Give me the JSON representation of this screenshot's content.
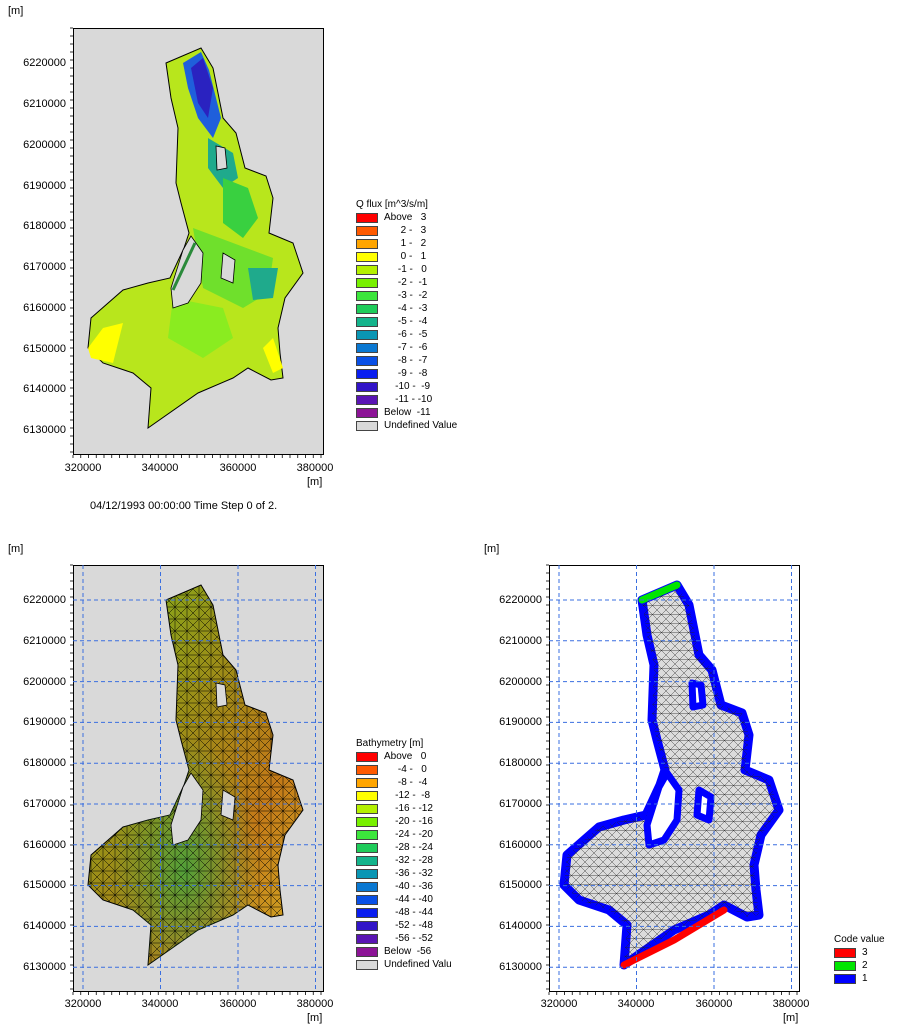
{
  "plots": {
    "flux": {
      "y_unit": "[m]",
      "x_unit": "[m]",
      "y_ticks": [
        "6220000",
        "6210000",
        "6200000",
        "6190000",
        "6180000",
        "6170000",
        "6160000",
        "6150000",
        "6140000",
        "6130000"
      ],
      "x_ticks": [
        "320000",
        "340000",
        "360000",
        "380000"
      ],
      "caption": "04/12/1993 00:00:00  Time Step 0 of 2.",
      "background": "#d9d9d9",
      "grid": false
    },
    "bathymetry": {
      "y_unit": "[m]",
      "x_unit": "[m]",
      "y_ticks": [
        "6220000",
        "6210000",
        "6200000",
        "6190000",
        "6180000",
        "6170000",
        "6160000",
        "6150000",
        "6140000",
        "6130000"
      ],
      "x_ticks": [
        "320000",
        "340000",
        "360000",
        "380000"
      ],
      "background": "#d9d9d9",
      "grid": true
    },
    "code": {
      "y_unit": "[m]",
      "x_unit": "[m]",
      "y_ticks": [
        "6220000",
        "6210000",
        "6200000",
        "6190000",
        "6180000",
        "6170000",
        "6160000",
        "6150000",
        "6140000",
        "6130000"
      ],
      "x_ticks": [
        "320000",
        "340000",
        "360000",
        "380000"
      ],
      "background": "#ffffff",
      "grid": true
    }
  },
  "legends": {
    "flux": {
      "title": "Q flux [m^3/s/m]",
      "items": [
        {
          "label": "Above   3",
          "color": "#ff0000"
        },
        {
          "label": "      2 -   3",
          "color": "#ff5a00"
        },
        {
          "label": "      1 -   2",
          "color": "#ffa500"
        },
        {
          "label": "      0 -   1",
          "color": "#ffff00"
        },
        {
          "label": "     -1 -   0",
          "color": "#b4f000"
        },
        {
          "label": "     -2 -  -1",
          "color": "#78f000"
        },
        {
          "label": "     -3 -  -2",
          "color": "#3ce63c"
        },
        {
          "label": "     -4 -  -3",
          "color": "#1ecc5a"
        },
        {
          "label": "     -5 -  -4",
          "color": "#14b48c"
        },
        {
          "label": "     -6 -  -5",
          "color": "#0a96b4"
        },
        {
          "label": "     -7 -  -6",
          "color": "#0a78d2"
        },
        {
          "label": "     -8 -  -7",
          "color": "#0a50e6"
        },
        {
          "label": "     -9 -  -8",
          "color": "#0a1ef0"
        },
        {
          "label": "    -10 -  -9",
          "color": "#3214c8"
        },
        {
          "label": "    -11 - -10",
          "color": "#5a14b4"
        },
        {
          "label": "Below  -11",
          "color": "#8c1496"
        },
        {
          "label": "Undefined Value",
          "color": "#d9d9d9"
        }
      ]
    },
    "bathymetry": {
      "title": "Bathymetry [m]",
      "items": [
        {
          "label": "Above   0",
          "color": "#ff0000"
        },
        {
          "label": "     -4 -   0",
          "color": "#ff5a00"
        },
        {
          "label": "     -8 -  -4",
          "color": "#ffa500"
        },
        {
          "label": "    -12 -  -8",
          "color": "#ffff00"
        },
        {
          "label": "    -16 - -12",
          "color": "#b4f000"
        },
        {
          "label": "    -20 - -16",
          "color": "#78f000"
        },
        {
          "label": "    -24 - -20",
          "color": "#3ce63c"
        },
        {
          "label": "    -28 - -24",
          "color": "#1ecc5a"
        },
        {
          "label": "    -32 - -28",
          "color": "#14b48c"
        },
        {
          "label": "    -36 - -32",
          "color": "#0a96b4"
        },
        {
          "label": "    -40 - -36",
          "color": "#0a78d2"
        },
        {
          "label": "    -44 - -40",
          "color": "#0a50e6"
        },
        {
          "label": "    -48 - -44",
          "color": "#0a1ef0"
        },
        {
          "label": "    -52 - -48",
          "color": "#3214c8"
        },
        {
          "label": "    -56 - -52",
          "color": "#5a14b4"
        },
        {
          "label": "Below  -56",
          "color": "#8c1496"
        },
        {
          "label": "Undefined Valu",
          "color": "#d9d9d9"
        }
      ]
    },
    "code": {
      "title": "Code value",
      "items": [
        {
          "label": "3",
          "color": "#ff0000"
        },
        {
          "label": "2",
          "color": "#00e600"
        },
        {
          "label": "1",
          "color": "#0000ff"
        }
      ]
    }
  }
}
